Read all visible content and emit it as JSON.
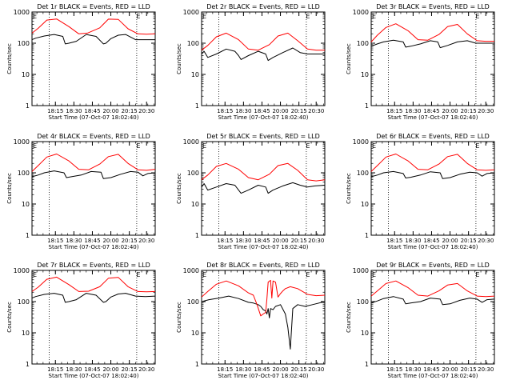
{
  "colors": {
    "events": "#000000",
    "lld": "#ff0000",
    "axes": "#000000",
    "background": "#ffffff"
  },
  "chart_data": [
    {
      "type": "line",
      "title": "Det 1r  BLACK = Events, RED = LLD",
      "xlabel": "Start Time (07-Oct-07 18:02:40)",
      "ylabel": "Counts/sec",
      "x_ticks": [
        "18:15",
        "18:30",
        "18:45",
        "20:00",
        "20:15",
        "20:30"
      ],
      "y_ticks": [
        "1",
        "10",
        "100",
        "1000"
      ],
      "ylim": [
        1,
        1000
      ],
      "y_scale": "log",
      "markers": [
        "E",
        "E"
      ],
      "series": [
        {
          "x": [
            0,
            0.03,
            0.1,
            0.18,
            0.25,
            0.27,
            0.3,
            0.36,
            0.44,
            0.52,
            0.58,
            0.6,
            0.64,
            0.7,
            0.76,
            0.84,
            0.92,
            1
          ],
          "values": [
            130,
            145,
            170,
            190,
            165,
            95,
            100,
            115,
            190,
            165,
            95,
            100,
            140,
            180,
            190,
            130,
            130,
            130
          ]
        },
        {
          "x": [
            0,
            0.05,
            0.12,
            0.2,
            0.3,
            0.38,
            0.45,
            0.55,
            0.62,
            0.7,
            0.78,
            0.86,
            0.93,
            1
          ],
          "values": [
            210,
            300,
            550,
            600,
            340,
            200,
            210,
            310,
            590,
            580,
            290,
            200,
            195,
            200
          ]
        }
      ]
    },
    {
      "type": "line",
      "title": "Det 2r  BLACK = Events, RED = LLD",
      "xlabel": "Start Time (07-Oct-07 18:02:40)",
      "ylabel": "Counts/sec",
      "x_ticks": [
        "18:15",
        "18:30",
        "18:45",
        "20:00",
        "20:15",
        "20:30"
      ],
      "y_ticks": [
        "1",
        "10",
        "100",
        "1000"
      ],
      "ylim": [
        1,
        1000
      ],
      "y_scale": "log",
      "markers": [
        "E",
        "E"
      ],
      "series": [
        {
          "x": [
            0,
            0.02,
            0.05,
            0.12,
            0.2,
            0.27,
            0.3,
            0.32,
            0.38,
            0.46,
            0.52,
            0.54,
            0.58,
            0.66,
            0.74,
            0.8,
            0.86,
            0.92,
            1
          ],
          "values": [
            45,
            55,
            35,
            45,
            65,
            55,
            40,
            30,
            40,
            55,
            45,
            28,
            35,
            50,
            70,
            50,
            45,
            45,
            45
          ]
        },
        {
          "x": [
            0,
            0.05,
            0.12,
            0.2,
            0.3,
            0.38,
            0.46,
            0.55,
            0.62,
            0.7,
            0.78,
            0.86,
            0.93,
            1
          ],
          "values": [
            60,
            85,
            160,
            210,
            130,
            65,
            60,
            90,
            170,
            210,
            120,
            65,
            60,
            60
          ]
        }
      ]
    },
    {
      "type": "line",
      "title": "Det 3r  BLACK = Events, RED = LLD",
      "xlabel": "Start Time (07-Oct-07 18:02:40)",
      "ylabel": "Counts/sec",
      "x_ticks": [
        "18:15",
        "18:30",
        "18:45",
        "20:00",
        "20:15",
        "20:30"
      ],
      "y_ticks": [
        "1",
        "10",
        "100",
        "1000"
      ],
      "ylim": [
        1,
        1000
      ],
      "y_scale": "log",
      "markers": [
        "E",
        "E"
      ],
      "series": [
        {
          "x": [
            0,
            0.05,
            0.1,
            0.18,
            0.26,
            0.28,
            0.32,
            0.4,
            0.48,
            0.54,
            0.56,
            0.62,
            0.7,
            0.78,
            0.85,
            0.92,
            1
          ],
          "values": [
            80,
            95,
            110,
            125,
            110,
            75,
            80,
            95,
            120,
            110,
            72,
            85,
            110,
            120,
            100,
            100,
            100
          ]
        },
        {
          "x": [
            0,
            0.05,
            0.12,
            0.2,
            0.3,
            0.38,
            0.46,
            0.55,
            0.62,
            0.7,
            0.78,
            0.86,
            0.93,
            1
          ],
          "values": [
            110,
            180,
            320,
            420,
            250,
            130,
            125,
            190,
            340,
            400,
            200,
            120,
            115,
            115
          ]
        }
      ]
    },
    {
      "type": "line",
      "title": "Det 4r  BLACK = Events, RED = LLD",
      "xlabel": "Start Time (07-Oct-07 18:02:40)",
      "ylabel": "Counts/sec",
      "x_ticks": [
        "18:15",
        "18:30",
        "18:45",
        "20:00",
        "20:15",
        "20:30"
      ],
      "y_ticks": [
        "1",
        "10",
        "100",
        "1000"
      ],
      "ylim": [
        1,
        1000
      ],
      "y_scale": "log",
      "markers": [
        "E",
        "E"
      ],
      "series": [
        {
          "x": [
            0,
            0.05,
            0.1,
            0.18,
            0.26,
            0.28,
            0.32,
            0.4,
            0.48,
            0.56,
            0.58,
            0.64,
            0.72,
            0.8,
            0.86,
            0.9,
            0.94,
            1
          ],
          "values": [
            75,
            85,
            100,
            115,
            100,
            70,
            75,
            85,
            110,
            105,
            65,
            70,
            90,
            110,
            105,
            80,
            95,
            100
          ]
        },
        {
          "x": [
            0,
            0.05,
            0.12,
            0.2,
            0.3,
            0.38,
            0.46,
            0.55,
            0.62,
            0.7,
            0.78,
            0.86,
            0.93,
            1
          ],
          "values": [
            110,
            170,
            320,
            400,
            240,
            130,
            125,
            190,
            330,
            390,
            200,
            125,
            120,
            130
          ]
        }
      ]
    },
    {
      "type": "line",
      "title": "Det 5r  BLACK = Events, RED = LLD",
      "xlabel": "Start Time (07-Oct-07 18:02:40)",
      "ylabel": "Counts/sec",
      "x_ticks": [
        "18:15",
        "18:30",
        "18:45",
        "20:00",
        "20:15",
        "20:30"
      ],
      "y_ticks": [
        "1",
        "10",
        "100",
        "1000"
      ],
      "ylim": [
        1,
        1000
      ],
      "y_scale": "log",
      "markers": [
        "E",
        "E"
      ],
      "series": [
        {
          "x": [
            0,
            0.02,
            0.05,
            0.12,
            0.2,
            0.27,
            0.3,
            0.32,
            0.38,
            0.46,
            0.52,
            0.54,
            0.58,
            0.66,
            0.74,
            0.8,
            0.86,
            0.92,
            1
          ],
          "values": [
            35,
            45,
            28,
            35,
            45,
            40,
            28,
            22,
            28,
            40,
            35,
            22,
            28,
            38,
            48,
            40,
            35,
            38,
            40
          ]
        },
        {
          "x": [
            0,
            0.05,
            0.12,
            0.2,
            0.3,
            0.38,
            0.46,
            0.55,
            0.62,
            0.7,
            0.78,
            0.86,
            0.93,
            1
          ],
          "values": [
            60,
            85,
            160,
            200,
            130,
            70,
            60,
            90,
            170,
            200,
            120,
            60,
            55,
            60
          ]
        }
      ]
    },
    {
      "type": "line",
      "title": "Det 6r  BLACK = Events, RED = LLD",
      "xlabel": "Start Time (07-Oct-07 18:02:40)",
      "ylabel": "Counts/sec",
      "x_ticks": [
        "18:15",
        "18:30",
        "18:45",
        "20:00",
        "20:15",
        "20:30"
      ],
      "y_ticks": [
        "1",
        "10",
        "100",
        "1000"
      ],
      "ylim": [
        1,
        1000
      ],
      "y_scale": "log",
      "markers": [
        "E",
        "E"
      ],
      "series": [
        {
          "x": [
            0,
            0.05,
            0.1,
            0.18,
            0.26,
            0.28,
            0.32,
            0.4,
            0.48,
            0.56,
            0.58,
            0.64,
            0.72,
            0.8,
            0.86,
            0.9,
            0.94,
            1
          ],
          "values": [
            75,
            85,
            100,
            110,
            95,
            68,
            72,
            85,
            108,
            100,
            65,
            70,
            90,
            105,
            100,
            78,
            95,
            100
          ]
        },
        {
          "x": [
            0,
            0.05,
            0.12,
            0.2,
            0.3,
            0.38,
            0.46,
            0.55,
            0.62,
            0.7,
            0.78,
            0.86,
            0.93,
            1
          ],
          "values": [
            110,
            170,
            320,
            400,
            240,
            130,
            125,
            190,
            330,
            390,
            200,
            125,
            120,
            125
          ]
        }
      ]
    },
    {
      "type": "line",
      "title": "Det 7r  BLACK = Events, RED = LLD",
      "xlabel": "Start Time (07-Oct-07 18:02:40)",
      "ylabel": "Counts/sec",
      "x_ticks": [
        "18:15",
        "18:30",
        "18:45",
        "20:00",
        "20:15",
        "20:30"
      ],
      "y_ticks": [
        "1",
        "10",
        "100",
        "1000"
      ],
      "ylim": [
        1,
        1000
      ],
      "y_scale": "log",
      "markers": [
        "E",
        "E"
      ],
      "series": [
        {
          "x": [
            0,
            0.03,
            0.1,
            0.18,
            0.25,
            0.27,
            0.3,
            0.36,
            0.44,
            0.52,
            0.58,
            0.6,
            0.64,
            0.7,
            0.76,
            0.84,
            0.92,
            1
          ],
          "values": [
            130,
            145,
            170,
            185,
            160,
            95,
            100,
            115,
            185,
            160,
            95,
            100,
            140,
            175,
            185,
            150,
            145,
            150
          ]
        },
        {
          "x": [
            0,
            0.05,
            0.12,
            0.2,
            0.3,
            0.38,
            0.46,
            0.55,
            0.62,
            0.7,
            0.78,
            0.86,
            0.93,
            1
          ],
          "values": [
            210,
            290,
            520,
            610,
            350,
            210,
            215,
            300,
            560,
            600,
            300,
            210,
            205,
            210
          ]
        }
      ]
    },
    {
      "type": "line",
      "title": "Det 8r  BLACK = Events, RED = LLD",
      "xlabel": "Start Time (07-Oct-07 18:02:40)",
      "ylabel": "Counts/sec",
      "x_ticks": [
        "18:15",
        "18:30",
        "18:45",
        "20:00",
        "20:15",
        "20:30"
      ],
      "y_ticks": [
        "1",
        "10",
        "100",
        "1000"
      ],
      "ylim": [
        1,
        1000
      ],
      "y_scale": "log",
      "markers": [
        "E",
        "E"
      ],
      "series": [
        {
          "x": [
            0,
            0.06,
            0.14,
            0.22,
            0.3,
            0.38,
            0.42,
            0.46,
            0.48,
            0.5,
            0.52,
            0.53,
            0.54,
            0.55,
            0.56,
            0.58,
            0.6,
            0.64,
            0.68,
            0.7,
            0.72,
            0.74,
            0.78,
            0.84,
            0.9,
            1
          ],
          "values": [
            100,
            115,
            130,
            150,
            125,
            95,
            90,
            80,
            70,
            55,
            50,
            40,
            60,
            30,
            60,
            55,
            70,
            80,
            40,
            15,
            3,
            60,
            80,
            70,
            80,
            100
          ]
        },
        {
          "x": [
            0,
            0.05,
            0.12,
            0.2,
            0.3,
            0.38,
            0.42,
            0.45,
            0.48,
            0.5,
            0.52,
            0.53,
            0.54,
            0.56,
            0.57,
            0.58,
            0.6,
            0.62,
            0.64,
            0.66,
            0.68,
            0.72,
            0.78,
            0.86,
            0.93,
            1
          ],
          "values": [
            140,
            210,
            360,
            460,
            320,
            190,
            160,
            80,
            35,
            40,
            45,
            120,
            420,
            480,
            130,
            460,
            420,
            140,
            180,
            220,
            260,
            300,
            260,
            170,
            155,
            160
          ]
        }
      ]
    },
    {
      "type": "line",
      "title": "Det 9r  BLACK = Events, RED = LLD",
      "xlabel": "Start Time (07-Oct-07 18:02:40)",
      "ylabel": "Counts/sec",
      "x_ticks": [
        "18:15",
        "18:30",
        "18:45",
        "20:00",
        "20:15",
        "20:30"
      ],
      "y_ticks": [
        "1",
        "10",
        "100",
        "1000"
      ],
      "ylim": [
        1,
        1000
      ],
      "y_scale": "log",
      "markers": [
        "E",
        "E"
      ],
      "series": [
        {
          "x": [
            0,
            0.05,
            0.1,
            0.18,
            0.26,
            0.28,
            0.32,
            0.4,
            0.48,
            0.56,
            0.58,
            0.64,
            0.72,
            0.8,
            0.86,
            0.9,
            0.94,
            1
          ],
          "values": [
            90,
            105,
            125,
            145,
            120,
            85,
            90,
            100,
            130,
            120,
            80,
            85,
            110,
            130,
            120,
            95,
            115,
            120
          ]
        },
        {
          "x": [
            0,
            0.05,
            0.12,
            0.2,
            0.3,
            0.38,
            0.46,
            0.55,
            0.62,
            0.7,
            0.78,
            0.86,
            0.93,
            1
          ],
          "values": [
            150,
            220,
            380,
            460,
            280,
            160,
            150,
            220,
            340,
            380,
            220,
            150,
            145,
            150
          ]
        }
      ]
    }
  ]
}
